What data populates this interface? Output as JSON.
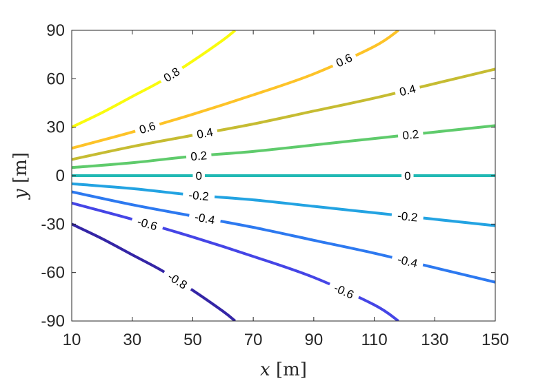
{
  "chart_data": {
    "type": "contour",
    "title": "",
    "xlabel": {
      "var": "x",
      "unit": "[m]"
    },
    "ylabel": {
      "var": "y",
      "unit": "[m]"
    },
    "xlim": [
      10,
      150
    ],
    "ylim": [
      -90,
      90
    ],
    "xticks": [
      10,
      30,
      50,
      70,
      90,
      110,
      130,
      150
    ],
    "yticks": [
      90,
      60,
      30,
      0,
      -30,
      -60,
      -90
    ],
    "xtick_labels": [
      "10",
      "30",
      "50",
      "70",
      "90",
      "110",
      "130",
      "150"
    ],
    "ytick_labels": [
      "90",
      "60",
      "30",
      "0",
      "-30",
      "-60",
      "-90"
    ],
    "grid": false,
    "levels": [
      {
        "level": 0.8,
        "color": "#f9fb0e",
        "points": [
          [
            10,
            30
          ],
          [
            20,
            39
          ],
          [
            30,
            49
          ],
          [
            40,
            59
          ],
          [
            50,
            71
          ],
          [
            60,
            84
          ],
          [
            64,
            90
          ]
        ],
        "labels": [
          {
            "text": "0.8",
            "x": 43
          }
        ]
      },
      {
        "level": 0.6,
        "color": "#fdc328",
        "points": [
          [
            10,
            17
          ],
          [
            30,
            27
          ],
          [
            50,
            38
          ],
          [
            70,
            50
          ],
          [
            90,
            63
          ],
          [
            110,
            80
          ],
          [
            118,
            90
          ]
        ],
        "labels": [
          {
            "text": "0.6",
            "x": 35
          },
          {
            "text": "0.6",
            "x": 100
          }
        ]
      },
      {
        "level": 0.4,
        "color": "#c6bc32",
        "points": [
          [
            10,
            10
          ],
          [
            30,
            18
          ],
          [
            50,
            25
          ],
          [
            70,
            32
          ],
          [
            90,
            40
          ],
          [
            110,
            48
          ],
          [
            130,
            57
          ],
          [
            150,
            66
          ]
        ],
        "labels": [
          {
            "text": "0.4",
            "x": 54
          },
          {
            "text": "0.4",
            "x": 121
          }
        ]
      },
      {
        "level": 0.2,
        "color": "#5fcb6c",
        "points": [
          [
            10,
            5
          ],
          [
            30,
            8
          ],
          [
            50,
            12
          ],
          [
            70,
            15
          ],
          [
            90,
            19
          ],
          [
            110,
            23
          ],
          [
            130,
            27
          ],
          [
            150,
            31
          ]
        ],
        "labels": [
          {
            "text": "0.2",
            "x": 52
          },
          {
            "text": "0.2",
            "x": 122
          }
        ]
      },
      {
        "level": 0,
        "color": "#21b9b4",
        "points": [
          [
            10,
            0
          ],
          [
            150,
            0
          ]
        ],
        "labels": [
          {
            "text": "0",
            "x": 52
          },
          {
            "text": "0",
            "x": 121
          }
        ]
      },
      {
        "level": -0.2,
        "color": "#23a3e2",
        "points": [
          [
            10,
            -5
          ],
          [
            30,
            -8
          ],
          [
            50,
            -12
          ],
          [
            70,
            -15
          ],
          [
            90,
            -19
          ],
          [
            110,
            -23
          ],
          [
            130,
            -27
          ],
          [
            150,
            -31
          ]
        ],
        "labels": [
          {
            "text": "-0.2",
            "x": 52
          },
          {
            "text": "-0.2",
            "x": 121
          }
        ]
      },
      {
        "level": -0.4,
        "color": "#2d79f0",
        "points": [
          [
            10,
            -10
          ],
          [
            30,
            -18
          ],
          [
            50,
            -25
          ],
          [
            70,
            -32
          ],
          [
            90,
            -40
          ],
          [
            110,
            -48
          ],
          [
            130,
            -57
          ],
          [
            150,
            -66
          ]
        ],
        "labels": [
          {
            "text": "-0.4",
            "x": 54
          },
          {
            "text": "-0.4",
            "x": 121
          }
        ]
      },
      {
        "level": -0.6,
        "color": "#4545e6",
        "points": [
          [
            10,
            -17
          ],
          [
            30,
            -27
          ],
          [
            50,
            -38
          ],
          [
            70,
            -50
          ],
          [
            90,
            -63
          ],
          [
            110,
            -80
          ],
          [
            118,
            -90
          ]
        ],
        "labels": [
          {
            "text": "-0.6",
            "x": 35
          },
          {
            "text": "-0.6",
            "x": 100
          }
        ]
      },
      {
        "level": -0.8,
        "color": "#3425a6",
        "points": [
          [
            10,
            -30
          ],
          [
            20,
            -39
          ],
          [
            30,
            -49
          ],
          [
            40,
            -59
          ],
          [
            50,
            -71
          ],
          [
            60,
            -84
          ],
          [
            64,
            -90
          ]
        ],
        "labels": [
          {
            "text": "-0.8",
            "x": 45
          }
        ]
      }
    ]
  }
}
